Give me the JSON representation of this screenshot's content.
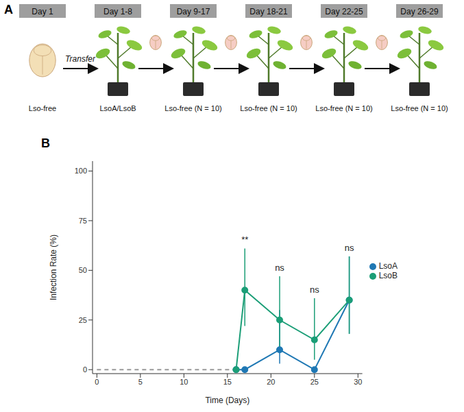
{
  "panel_a": {
    "letter": "A",
    "arrow_label": "Transfer",
    "steps": [
      {
        "day": "Day 1",
        "label": "Lso-free"
      },
      {
        "day": "Day 1-8",
        "label": "LsoA/LsoB"
      },
      {
        "day": "Day 9-17",
        "label": "Lso-free (N = 10)"
      },
      {
        "day": "Day 18-21",
        "label": "Lso-free (N = 10)"
      },
      {
        "day": "Day 22-25",
        "label": "Lso-free (N = 10)"
      },
      {
        "day": "Day 26-29",
        "label": "Lso-free (N = 10)"
      }
    ]
  },
  "chart_data": {
    "type": "line",
    "panel_label": "B",
    "x_label": "Time (Days)",
    "y_label": "Infection Rate (%)",
    "x": [
      16,
      17,
      21,
      25,
      29
    ],
    "series": [
      {
        "name": "LsoA",
        "color": "#1f78b4",
        "marker": "circle",
        "line_style": "solid",
        "values": [
          0,
          0,
          10,
          0,
          35
        ],
        "errors": [
          null,
          null,
          [
            7,
            20
          ],
          null,
          [
            17,
            22
          ]
        ]
      },
      {
        "name": "LsoB",
        "color": "#1b9e77",
        "marker": "circle",
        "line_style": "solid",
        "values": [
          0,
          40,
          25,
          15,
          35
        ],
        "errors": [
          null,
          [
            18,
            21
          ],
          [
            14,
            22
          ],
          [
            10,
            21
          ],
          [
            17,
            22
          ]
        ]
      }
    ],
    "baseline": {
      "x": [
        0,
        16
      ],
      "values": [
        0,
        0
      ],
      "color": "#999999",
      "line_style": "dashed"
    },
    "annotations": [
      {
        "x": 17,
        "text": "**"
      },
      {
        "x": 21,
        "text": "ns"
      },
      {
        "x": 25,
        "text": "ns"
      },
      {
        "x": 29,
        "text": "ns"
      }
    ],
    "xlim": [
      -0.5,
      30.5
    ],
    "ylim": [
      -2,
      105
    ],
    "xticks": [
      0,
      5,
      10,
      15,
      20,
      25,
      30
    ],
    "yticks": [
      0,
      25,
      50,
      75,
      100
    ],
    "grid": false,
    "legend": "right"
  }
}
